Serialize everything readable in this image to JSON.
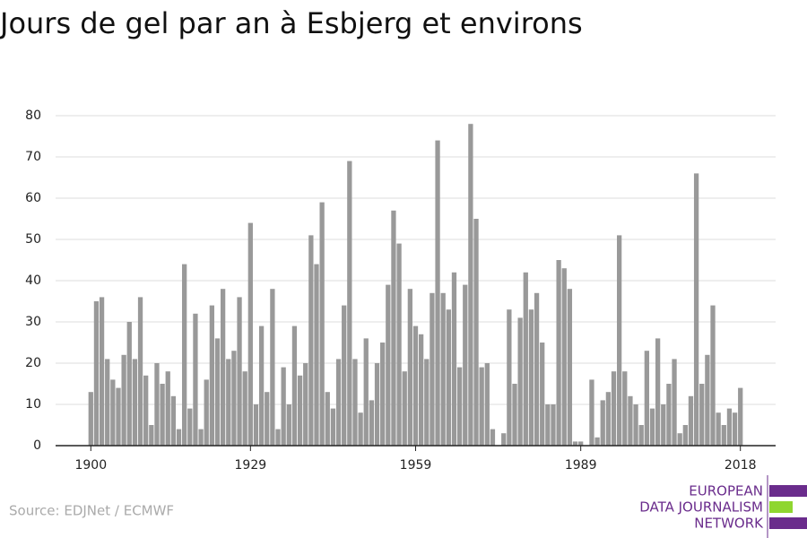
{
  "chart_data": {
    "type": "bar",
    "title": "Jours de gel par an à Esbjerg et environs",
    "source": "Source: EDJNet / ECMWF",
    "logo": [
      "EUROPEAN",
      "DATA JOURNALISM",
      "NETWORK"
    ],
    "color": "#999999",
    "x": [
      1900,
      1901,
      1902,
      1903,
      1904,
      1905,
      1906,
      1907,
      1908,
      1909,
      1910,
      1911,
      1912,
      1913,
      1914,
      1915,
      1916,
      1917,
      1918,
      1919,
      1920,
      1921,
      1922,
      1923,
      1924,
      1925,
      1926,
      1927,
      1928,
      1929,
      1930,
      1931,
      1932,
      1933,
      1934,
      1935,
      1936,
      1937,
      1938,
      1939,
      1940,
      1941,
      1942,
      1943,
      1944,
      1945,
      1946,
      1947,
      1948,
      1949,
      1950,
      1951,
      1952,
      1953,
      1954,
      1955,
      1956,
      1957,
      1958,
      1959,
      1960,
      1961,
      1962,
      1963,
      1964,
      1965,
      1966,
      1967,
      1968,
      1969,
      1970,
      1971,
      1972,
      1973,
      1974,
      1975,
      1976,
      1977,
      1978,
      1979,
      1980,
      1981,
      1982,
      1983,
      1984,
      1985,
      1986,
      1987,
      1988,
      1989,
      1990,
      1991,
      1992,
      1993,
      1994,
      1995,
      1996,
      1997,
      1998,
      1999,
      2000,
      2001,
      2002,
      2003,
      2004,
      2005,
      2006,
      2007,
      2008,
      2009,
      2010,
      2011,
      2012,
      2013,
      2014,
      2015,
      2016,
      2017,
      2018
    ],
    "values": [
      13,
      35,
      36,
      21,
      16,
      14,
      22,
      30,
      21,
      36,
      17,
      5,
      20,
      15,
      18,
      12,
      4,
      44,
      9,
      32,
      4,
      16,
      34,
      26,
      38,
      21,
      23,
      36,
      18,
      54,
      10,
      29,
      13,
      38,
      4,
      19,
      10,
      29,
      17,
      20,
      51,
      44,
      59,
      13,
      9,
      21,
      34,
      69,
      21,
      8,
      26,
      11,
      20,
      25,
      39,
      57,
      49,
      18,
      38,
      29,
      27,
      21,
      37,
      74,
      37,
      33,
      42,
      19,
      39,
      78,
      55,
      19,
      20,
      4,
      0,
      3,
      33,
      15,
      31,
      42,
      33,
      37,
      25,
      10,
      10,
      45,
      43,
      38,
      1,
      1,
      0,
      16,
      2,
      11,
      13,
      18,
      51,
      18,
      12,
      10,
      5,
      23,
      9,
      26,
      10,
      15,
      21,
      3,
      5,
      12,
      66,
      15,
      22,
      34,
      8,
      5,
      9,
      8,
      14
    ],
    "xlim": [
      1893.6,
      2024.4
    ],
    "xticks": [
      1900,
      1929,
      1959,
      1989,
      2018
    ],
    "ylim": [
      0,
      80
    ],
    "yticks": [
      0,
      10,
      20,
      30,
      40,
      50,
      60,
      70,
      80
    ],
    "grid": true
  }
}
